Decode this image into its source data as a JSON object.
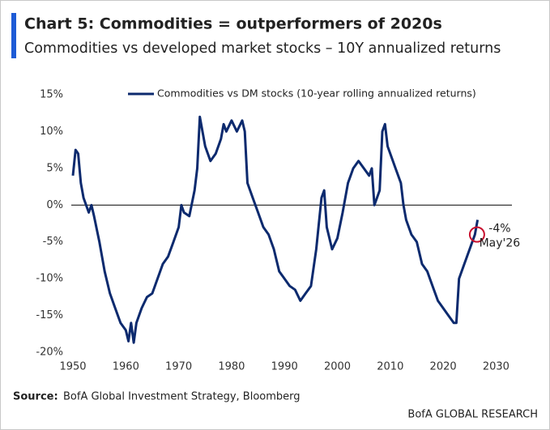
{
  "chart_data": {
    "type": "line",
    "title": "Chart 5: Commodities = outperformers of 2020s",
    "subtitle": "Commodities vs developed market stocks – 10Y annualized returns",
    "source_label": "Source:",
    "source_text": "BofA Global Investment Strategy, Bloomberg",
    "footer": "BofA GLOBAL RESEARCH",
    "x": [
      1950,
      1950.5,
      1951,
      1951.5,
      1952,
      1953,
      1953.5,
      1954,
      1955,
      1956,
      1957,
      1958,
      1959,
      1960,
      1960.5,
      1961,
      1961.5,
      1962,
      1963,
      1964,
      1965,
      1966,
      1967,
      1968,
      1969,
      1970,
      1970.5,
      1971,
      1972,
      1973,
      1973.5,
      1974,
      1975,
      1976,
      1977,
      1978,
      1978.5,
      1979,
      1980,
      1981,
      1982,
      1982.5,
      1983,
      1984,
      1985,
      1986,
      1987,
      1988,
      1989,
      1990,
      1991,
      1992,
      1993,
      1994,
      1995,
      1996,
      1997,
      1997.5,
      1998,
      1999,
      2000,
      2001,
      2002,
      2003,
      2004,
      2005,
      2006,
      2006.5,
      2007,
      2008,
      2008.5,
      2009,
      2009.5,
      2010,
      2011,
      2012,
      2012.5,
      2013,
      2014,
      2015,
      2016,
      2017,
      2018,
      2019,
      2020,
      2021,
      2022,
      2022.5,
      2023,
      2024,
      2025,
      2026,
      2026.5
    ],
    "series": [
      {
        "name": "Commodities vs DM stocks (10-year rolling annualized returns)",
        "color": "#0c2a6e",
        "values": [
          4,
          7.5,
          7,
          3,
          1,
          -1,
          0,
          -1.5,
          -5,
          -9,
          -12,
          -14,
          -16,
          -17,
          -18.5,
          -16,
          -18.7,
          -16,
          -14,
          -12.5,
          -12,
          -10,
          -8,
          -7,
          -5,
          -3,
          0,
          -1,
          -1.5,
          2,
          5,
          12,
          8,
          6,
          7,
          9,
          11,
          10,
          11.5,
          10,
          11.5,
          10,
          3,
          1,
          -1,
          -3,
          -4,
          -6,
          -9,
          -10,
          -11,
          -11.5,
          -13,
          -12,
          -11,
          -6,
          1,
          2,
          -3,
          -6,
          -4.5,
          -1,
          3,
          5,
          6,
          5,
          4,
          5,
          0,
          2,
          10,
          11,
          8,
          7,
          5,
          3,
          0,
          -2,
          -4,
          -5,
          -8,
          -9,
          -11,
          -13,
          -14,
          -15,
          -16,
          -16,
          -10,
          -8,
          -6,
          -4,
          -2
        ]
      }
    ],
    "annotation": {
      "label": "-4%",
      "date": "May'26",
      "value": -4,
      "x": 2026.4,
      "color": "#c8102e"
    },
    "xlim": [
      1950,
      2033
    ],
    "ylim": [
      -20,
      15
    ],
    "xticks": [
      1950,
      1960,
      1970,
      1980,
      1990,
      2000,
      2010,
      2020,
      2030
    ],
    "yticks": [
      {
        "value": 15,
        "label": "15%"
      },
      {
        "value": 10,
        "label": "10%"
      },
      {
        "value": 5,
        "label": "5%"
      },
      {
        "value": 0,
        "label": "0%"
      },
      {
        "value": -5,
        "label": "-5%"
      },
      {
        "value": -10,
        "label": "-10%"
      },
      {
        "value": -15,
        "label": "-15%"
      },
      {
        "value": -20,
        "label": "-20%"
      }
    ],
    "zero_line": true,
    "legend": "top"
  }
}
